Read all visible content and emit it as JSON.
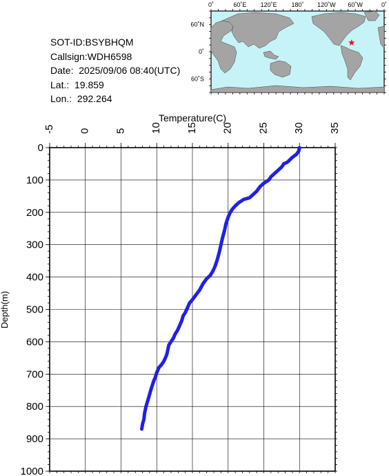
{
  "info": {
    "sot_id": "SOT-ID:BSYBHQM",
    "callsign": "Callsign:WDH6598",
    "date": "Date:  2025/09/06 08:40(UTC)",
    "lat": "Lat.:  19.859",
    "lon": "Lon.:  292.264"
  },
  "map": {
    "top_labels": [
      "0˚",
      "60˚E",
      "120˚E",
      "180˚",
      "120˚W",
      "60˚W",
      "0˚"
    ],
    "left_labels": [
      "60˚N",
      "0˚",
      "60˚S"
    ],
    "ocean_color": "#c6f3f7",
    "land_color": "#a4a4a4",
    "marker_color": "#e01a1a",
    "marker_lat": 19.859,
    "marker_lon": 292.264
  },
  "chart_data": {
    "type": "line",
    "xlabel": "Temperature(C)",
    "ylabel": "Depth(m)",
    "xlim": [
      -5,
      35
    ],
    "ylim": [
      0,
      1000
    ],
    "y_inverted": true,
    "x_ticks": [
      "-5",
      "0",
      "5",
      "10",
      "15",
      "20",
      "25",
      "30",
      "35"
    ],
    "y_ticks": [
      "0",
      "100",
      "200",
      "300",
      "400",
      "500",
      "600",
      "700",
      "800",
      "900",
      "1000"
    ],
    "grid": true,
    "line_color": "#2020e6",
    "series": [
      {
        "temperature": [
          30.0,
          29.9,
          29.6,
          29.0,
          28.3,
          27.8,
          27.5,
          27.0,
          26.5,
          26.0,
          25.7,
          25.0,
          24.5,
          24.0,
          23.5,
          23.0,
          22.2,
          21.5,
          21.0,
          20.6,
          20.3,
          20.0,
          19.7,
          19.5,
          19.2,
          19.0,
          18.8,
          18.5,
          18.2,
          17.9,
          17.5,
          17.0,
          16.5,
          16.0,
          15.5,
          15.0,
          14.6,
          14.3,
          14.0,
          13.7,
          13.5,
          13.2,
          12.9,
          12.6,
          12.3,
          12.0,
          11.7,
          11.5,
          11.4,
          11.2,
          11.0,
          10.7,
          10.3,
          10.0,
          9.8,
          9.6,
          9.3,
          9.1,
          8.9,
          8.7,
          8.5,
          8.3,
          8.2,
          8.0,
          7.9
        ],
        "depth": [
          0,
          10,
          20,
          30,
          45,
          50,
          60,
          70,
          80,
          90,
          100,
          110,
          120,
          135,
          145,
          155,
          160,
          170,
          180,
          190,
          200,
          215,
          235,
          255,
          280,
          300,
          320,
          345,
          365,
          380,
          395,
          405,
          420,
          440,
          455,
          470,
          480,
          495,
          510,
          520,
          535,
          550,
          565,
          575,
          590,
          600,
          610,
          630,
          640,
          650,
          660,
          670,
          680,
          695,
          710,
          720,
          740,
          755,
          770,
          785,
          800,
          820,
          840,
          855,
          870
        ]
      }
    ]
  }
}
